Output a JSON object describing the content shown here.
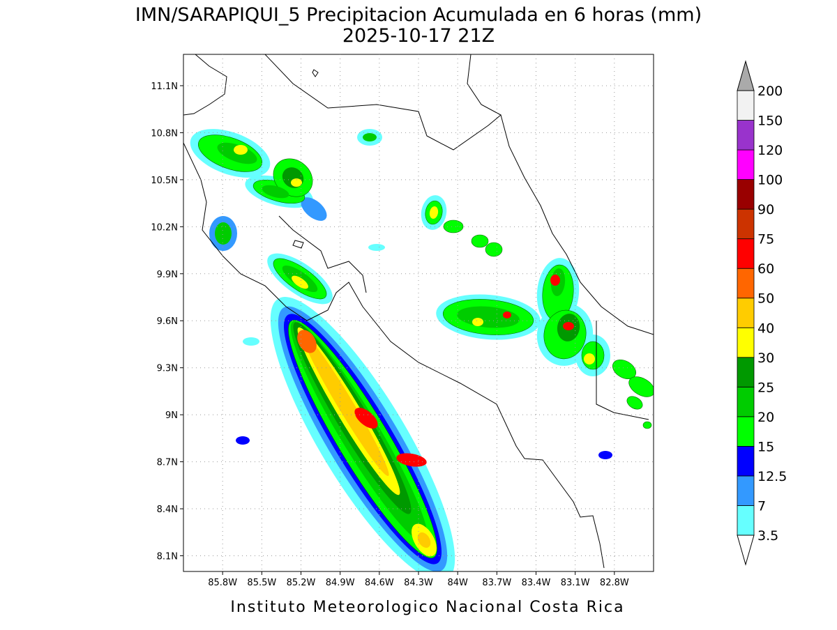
{
  "title": "IMN/SARAPIQUI_5 Precipitacion Acumulada en 6 horas (mm)",
  "subtitle": "2025-10-17 21Z",
  "footer": "Instituto Meteorologico Nacional Costa Rica",
  "map": {
    "xlim": [
      -86.1,
      -82.5
    ],
    "ylim": [
      8.0,
      11.3
    ],
    "grid": true,
    "xticks": [
      {
        "value": -85.8,
        "label": "85.8W"
      },
      {
        "value": -85.5,
        "label": "85.5W"
      },
      {
        "value": -85.2,
        "label": "85.2W"
      },
      {
        "value": -84.9,
        "label": "84.9W"
      },
      {
        "value": -84.6,
        "label": "84.6W"
      },
      {
        "value": -84.3,
        "label": "84.3W"
      },
      {
        "value": -84.0,
        "label": "84W"
      },
      {
        "value": -83.7,
        "label": "83.7W"
      },
      {
        "value": -83.4,
        "label": "83.4W"
      },
      {
        "value": -83.1,
        "label": "83.1W"
      },
      {
        "value": -82.8,
        "label": "82.8W"
      }
    ],
    "yticks": [
      {
        "value": 8.1,
        "label": "8.1N"
      },
      {
        "value": 8.4,
        "label": "8.4N"
      },
      {
        "value": 8.7,
        "label": "8.7N"
      },
      {
        "value": 9.0,
        "label": "9N"
      },
      {
        "value": 9.3,
        "label": "9.3N"
      },
      {
        "value": 9.6,
        "label": "9.6N"
      },
      {
        "value": 9.9,
        "label": "9.9N"
      },
      {
        "value": 10.2,
        "label": "10.2N"
      },
      {
        "value": 10.5,
        "label": "10.5N"
      },
      {
        "value": 10.8,
        "label": "10.8N"
      },
      {
        "value": 11.1,
        "label": "11.1N"
      }
    ]
  },
  "colorbar": {
    "labels": [
      3.5,
      7,
      12.5,
      15,
      20,
      25,
      30,
      40,
      50,
      60,
      75,
      90,
      100,
      120,
      150,
      200
    ],
    "colors": [
      "#66ffff",
      "#3399ff",
      "#0000ff",
      "#00ff00",
      "#00cc00",
      "#009900",
      "#ffff00",
      "#ffcc00",
      "#ff6600",
      "#ff0000",
      "#cc3300",
      "#990000",
      "#ff00ff",
      "#9933cc",
      "#f2f2f2"
    ],
    "under_color": "#ffffff",
    "over_color": "#aaaaaa"
  }
}
